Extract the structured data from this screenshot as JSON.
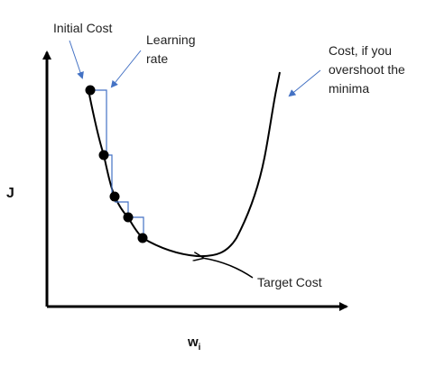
{
  "axes": {
    "y_label": "J",
    "x_label_main": "w",
    "x_label_sub": "i"
  },
  "annotations": {
    "initial_cost": "Initial Cost",
    "learning_rate_line1": "Learning",
    "learning_rate_line2": "rate",
    "overshoot_line1": "Cost, if you",
    "overshoot_line2": "overshoot the",
    "overshoot_line3": "minima",
    "target_cost": "Target Cost"
  },
  "gradient_steps": {
    "count": 5
  },
  "colors": {
    "curve": "#000000",
    "axis": "#000000",
    "step_lines": "#4472C4",
    "callout_arrows": "#4472C4",
    "points": "#000000"
  }
}
